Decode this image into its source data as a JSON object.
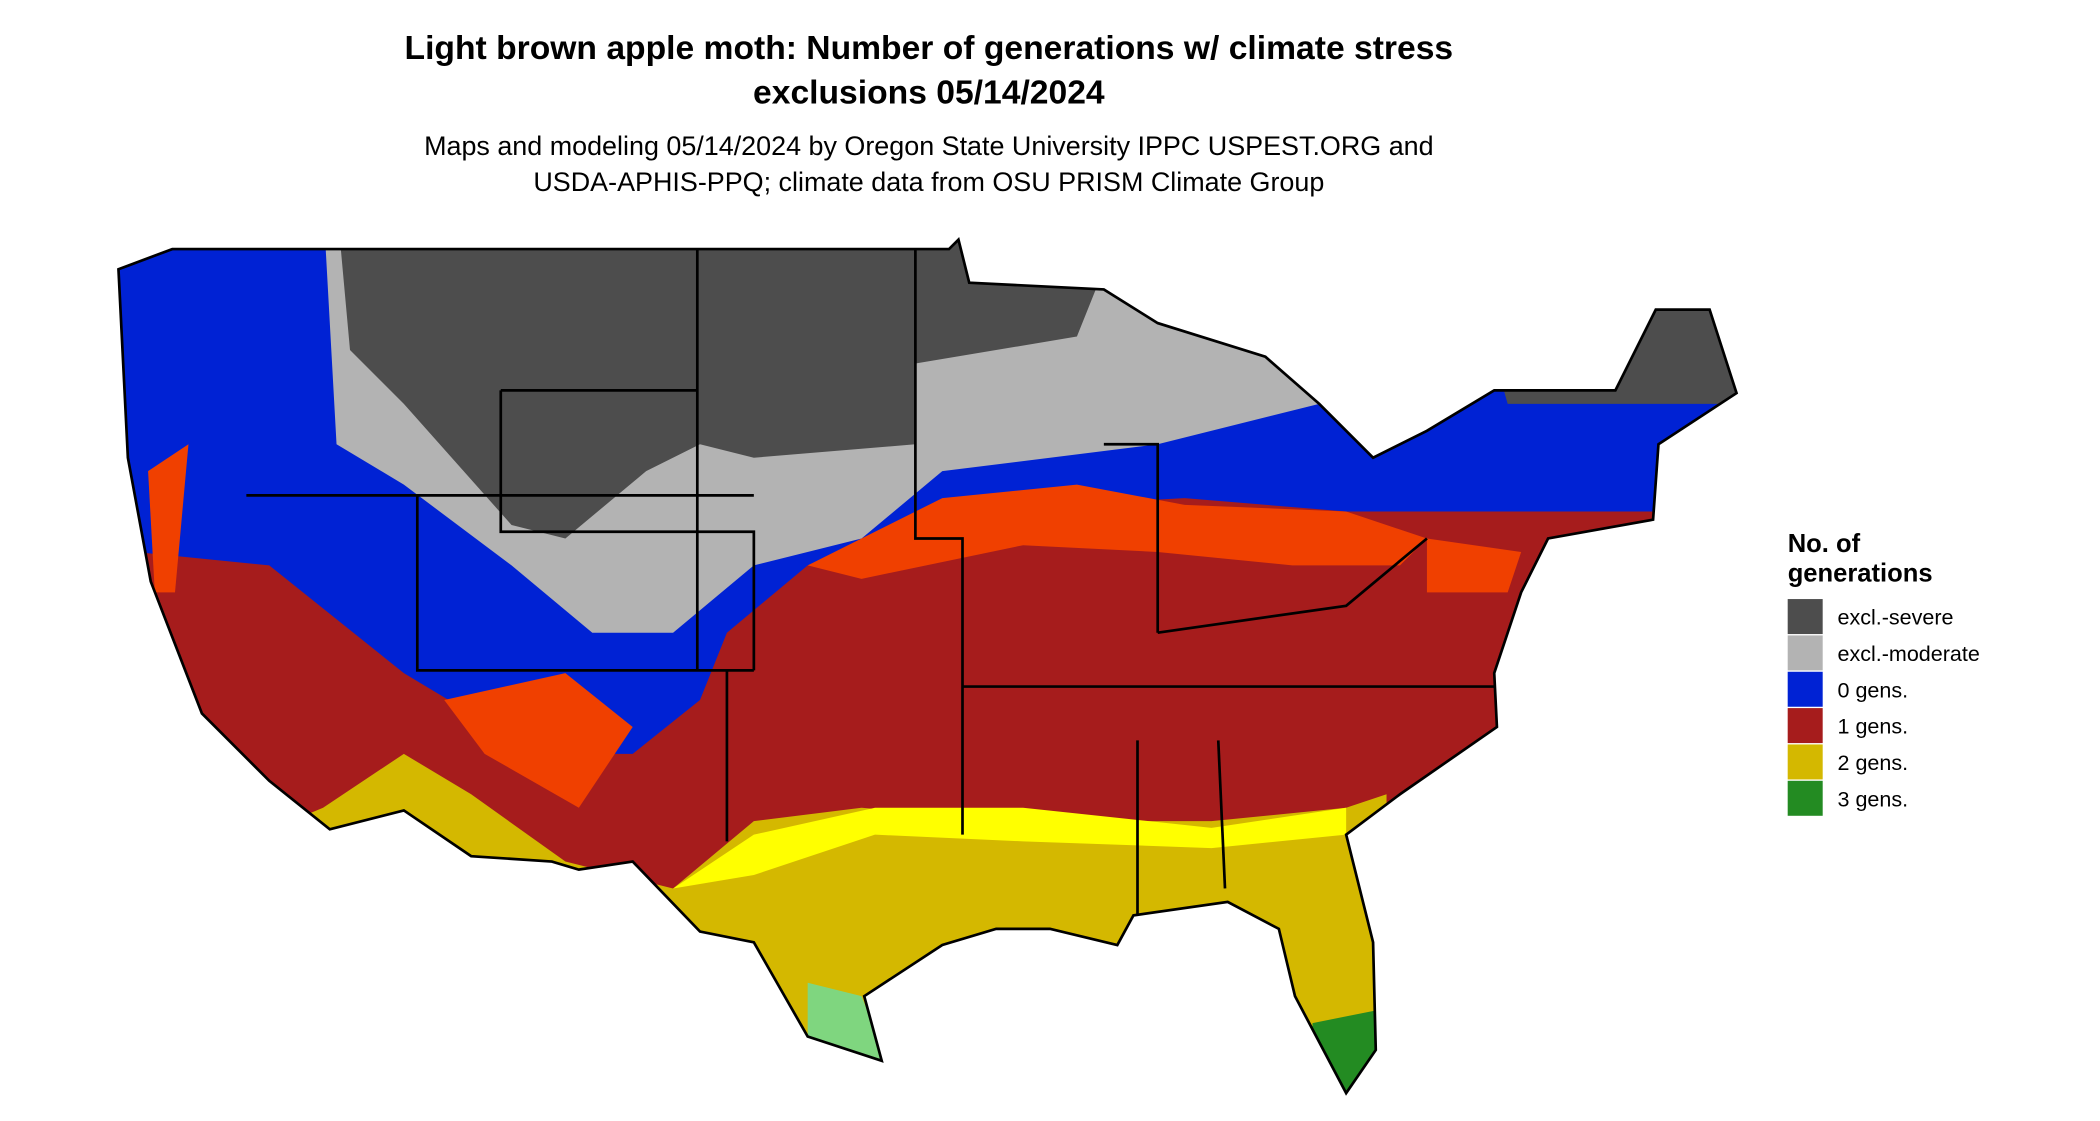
{
  "title": [
    "Light brown apple moth: Number of generations w/ climate stress",
    "exclusions 05/14/2024"
  ],
  "subtitle": [
    "Maps and modeling 05/14/2024 by Oregon State University IPPC USPEST.ORG and",
    "USDA-APHIS-PPQ; climate data from OSU PRISM Climate Group"
  ],
  "legend": {
    "title": [
      "No. of",
      "generations"
    ],
    "items": [
      {
        "label": "excl.-severe",
        "color": "#4d4d4d"
      },
      {
        "label": "excl.-moderate",
        "color": "#b3b3b3"
      },
      {
        "label": "0 gens.",
        "color": "#0022d4"
      },
      {
        "label": "1 gens.",
        "color": "#a61c1c"
      },
      {
        "label": "2 gens.",
        "color": "#d4b800"
      },
      {
        "label": "3 gens.",
        "color": "#238b22"
      }
    ]
  }
}
